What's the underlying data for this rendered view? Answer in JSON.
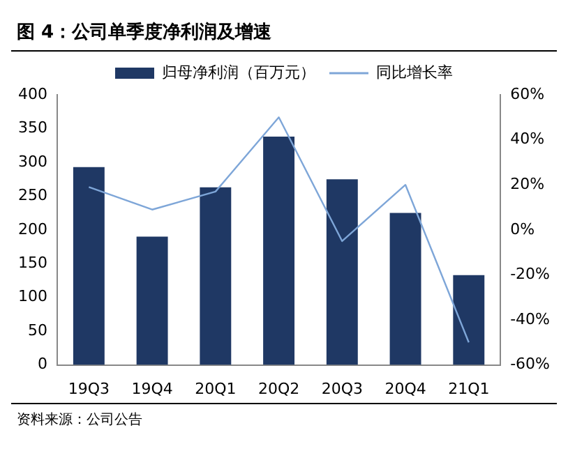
{
  "chart_data": {
    "type": "bar",
    "title": "图 4：公司单季度净利润及增速",
    "categories": [
      "19Q3",
      "19Q4",
      "20Q1",
      "20Q2",
      "20Q3",
      "20Q4",
      "21Q1"
    ],
    "series": [
      {
        "name": "归母净利润（百万元）",
        "color": "#1f3864",
        "values": [
          293,
          190,
          263,
          338,
          275,
          225,
          133
        ]
      },
      {
        "name": "同比增长率",
        "type": "line",
        "axis": "y2",
        "color": "#7ea6d8",
        "values": [
          19,
          9,
          17,
          50,
          -5,
          20,
          -50
        ]
      }
    ],
    "ylim": [
      0,
      400
    ],
    "yticks": [
      0,
      50,
      100,
      150,
      200,
      250,
      300,
      350,
      400
    ],
    "y2lim": [
      -60,
      60
    ],
    "y2ticks": [
      {
        "value": -60,
        "label": "-60%"
      },
      {
        "value": -40,
        "label": "-40%"
      },
      {
        "value": -20,
        "label": "-20%"
      },
      {
        "value": 0,
        "label": "0%"
      },
      {
        "value": 20,
        "label": "20%"
      },
      {
        "value": 40,
        "label": "40%"
      },
      {
        "value": 60,
        "label": "60%"
      }
    ],
    "legend": "top",
    "grid": false,
    "marker": "none",
    "annotations": [
      "资料来源：公司公告"
    ]
  }
}
